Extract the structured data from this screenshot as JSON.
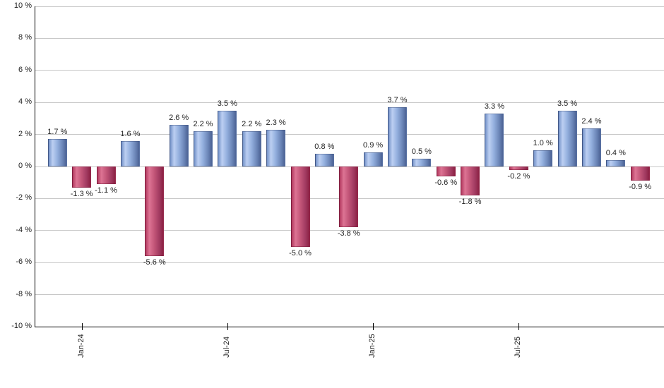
{
  "chart_data": {
    "type": "bar",
    "title": "",
    "xlabel": "",
    "ylabel": "",
    "ylim": [
      -10,
      10
    ],
    "grid": true,
    "legend": false,
    "background": "#ffffff",
    "y_ticks": [
      {
        "value": 10,
        "label": "10 %"
      },
      {
        "value": 8,
        "label": "8 %"
      },
      {
        "value": 6,
        "label": "6 %"
      },
      {
        "value": 4,
        "label": "4 %"
      },
      {
        "value": 2,
        "label": "2 %"
      },
      {
        "value": 0,
        "label": "0 %"
      },
      {
        "value": -2,
        "label": "-2 %"
      },
      {
        "value": -4,
        "label": "-4 %"
      },
      {
        "value": -6,
        "label": "-6 %"
      },
      {
        "value": -8,
        "label": "-8 %"
      },
      {
        "value": -10,
        "label": "-10 %"
      }
    ],
    "x_ticks": [
      {
        "label": "Jan-24",
        "bar_index": 1
      },
      {
        "label": "Jul-24",
        "bar_index": 7
      },
      {
        "label": "Jan-25",
        "bar_index": 13
      },
      {
        "label": "Jul-25",
        "bar_index": 19
      }
    ],
    "values": [
      1.7,
      -1.3,
      -1.1,
      1.6,
      -5.6,
      2.6,
      2.2,
      3.5,
      2.2,
      2.3,
      -5.0,
      0.8,
      -3.8,
      0.9,
      3.7,
      0.5,
      -0.6,
      -1.8,
      3.3,
      -0.2,
      1.0,
      3.5,
      2.4,
      0.4,
      -0.9
    ],
    "data_labels": [
      "1.7 %",
      "-1.3 %",
      "-1.1 %",
      "1.6 %",
      "-5.6 %",
      "2.6 %",
      "2.2 %",
      "3.5 %",
      "2.2 %",
      "2.3 %",
      "-5.0 %",
      "0.8 %",
      "-3.8 %",
      "0.9 %",
      "3.7 %",
      "0.5 %",
      "-0.6 %",
      "-1.8 %",
      "3.3 %",
      "-0.2 %",
      "1.0 %",
      "3.5 %",
      "2.4 %",
      "0.4 %",
      "-0.9 %"
    ],
    "colors": {
      "positive_bar": "#7b9acc",
      "positive_gradient": [
        "#7492c8",
        "#bccff2",
        "#92aedd",
        "#6c86b8",
        "#4c6395"
      ],
      "negative_bar": "#c04568",
      "negative_gradient": [
        "#b23a5f",
        "#dd7494",
        "#c25578",
        "#a23b61",
        "#8c2144"
      ],
      "gridline": "#c8c8c8",
      "axis": "#000000",
      "text": "#1f1f1f"
    }
  }
}
